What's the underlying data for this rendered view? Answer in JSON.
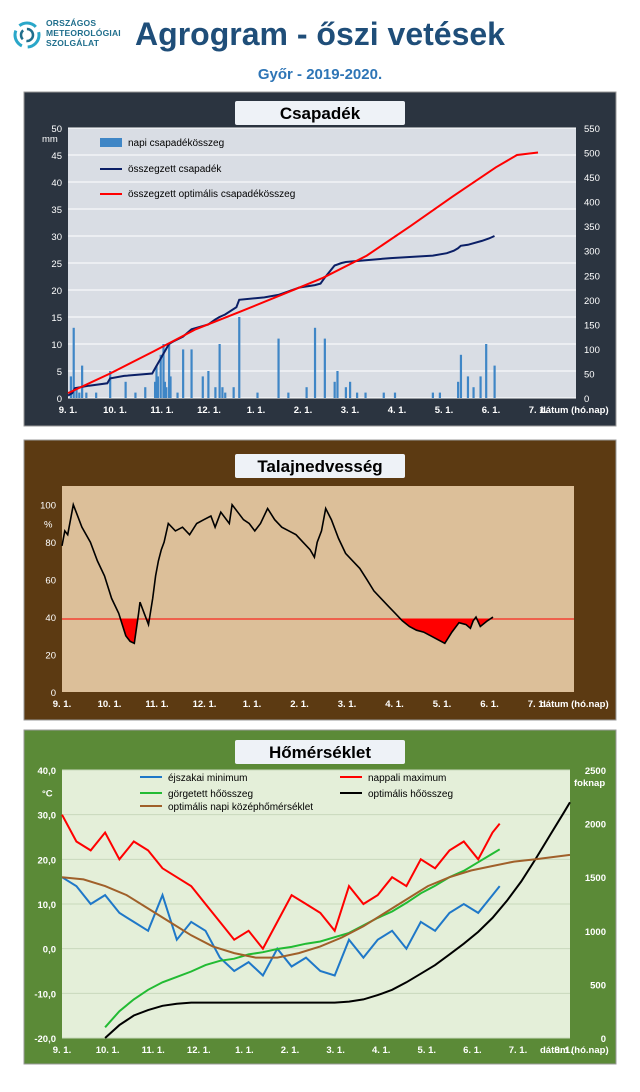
{
  "header": {
    "logo_lines": [
      "ORSZÁGOS",
      "METEOROLÓGIAI",
      "SZOLGÁLAT"
    ],
    "title": "Agrogram - őszi vetések",
    "subtitle": "Győr - 2019-2020."
  },
  "colors": {
    "panel1_bg": "#2b3440",
    "panel1_plot": "#d9dde4",
    "panel2_bg": "#5c3a12",
    "panel2_plot": "#dcbf99",
    "panel3_bg": "#5b8a37",
    "panel3_plot": "#e4efd9",
    "title_box": "#eef2f7",
    "bar_blue": "#3f86c6",
    "navy": "#0b1f66",
    "red": "#ff0000",
    "green": "#22bb33",
    "brown": "#a0602a",
    "blue_min": "#1f78c8"
  },
  "chart_data": [
    {
      "type": "bar",
      "title": "Csapadék",
      "xlabel": "dátum (hó.nap)",
      "ylabel": "mm",
      "ylim": [
        0,
        50
      ],
      "y2lim": [
        0,
        550
      ],
      "x_ticks": [
        "9. 1.",
        "10. 1.",
        "11. 1.",
        "12. 1.",
        "1. 1.",
        "2. 1.",
        "3. 1.",
        "4. 1.",
        "5. 1.",
        "6. 1.",
        "7. 1."
      ],
      "y_ticks": [
        "0",
        "5",
        "10",
        "15",
        "20",
        "25",
        "30",
        "35",
        "40",
        "45",
        "50"
      ],
      "y2_ticks": [
        "0",
        "50",
        "100",
        "150",
        "200",
        "250",
        "300",
        "350",
        "400",
        "450",
        "500",
        "550"
      ],
      "grid": true,
      "legend": [
        "napi csapadékösszeg",
        "összegzett csapadék",
        "összegzett optimális  csapadékösszeg"
      ],
      "series": [
        {
          "name": "napi csapadékösszeg",
          "axis": "left",
          "kind": "bar",
          "x": [
            2,
            4,
            6,
            8,
            10,
            13,
            20,
            30,
            41,
            48,
            55,
            62,
            63,
            64,
            66,
            68,
            69,
            70,
            72,
            73,
            78,
            82,
            88,
            96,
            100,
            105,
            108,
            110,
            112,
            118,
            122,
            135,
            150,
            157,
            170,
            176,
            183,
            190,
            192,
            198,
            201,
            206,
            212,
            225,
            233,
            260,
            265,
            278,
            280,
            285,
            289,
            294,
            298,
            304
          ],
          "values": [
            4,
            13,
            2,
            1,
            6,
            1,
            1,
            5,
            3,
            1,
            2,
            3,
            6,
            4,
            8,
            10,
            3,
            2,
            10,
            4,
            1,
            9,
            9,
            4,
            5,
            2,
            10,
            2,
            1,
            2,
            15,
            1,
            11,
            1,
            2,
            13,
            11,
            3,
            5,
            2,
            3,
            1,
            1,
            1,
            1,
            1,
            1,
            3,
            8,
            4,
            2,
            4,
            10,
            6
          ]
        },
        {
          "name": "összegzett csapadék",
          "axis": "right",
          "kind": "line",
          "x": [
            0,
            3,
            5,
            15,
            28,
            30,
            40,
            60,
            62,
            64,
            66,
            68,
            70,
            72,
            75,
            82,
            88,
            100,
            105,
            108,
            112,
            120,
            122,
            140,
            150,
            165,
            176,
            180,
            183,
            190,
            195,
            198,
            210,
            230,
            260,
            270,
            275,
            278,
            280,
            285,
            295,
            300,
            304
          ],
          "values": [
            5,
            10,
            20,
            25,
            30,
            40,
            45,
            50,
            60,
            70,
            80,
            90,
            100,
            110,
            115,
            125,
            140,
            150,
            160,
            165,
            170,
            185,
            200,
            205,
            210,
            225,
            230,
            233,
            245,
            270,
            275,
            277,
            280,
            285,
            290,
            295,
            300,
            305,
            310,
            312,
            320,
            325,
            330
          ]
        },
        {
          "name": "összegzett optimális  csapadékösszeg",
          "axis": "right",
          "kind": "line",
          "x": [
            0,
            30,
            61,
            91,
            122,
            152,
            182,
            213,
            244,
            274,
            305,
            320,
            335
          ],
          "values": [
            10,
            50,
            95,
            140,
            175,
            210,
            245,
            290,
            350,
            410,
            470,
            495,
            500
          ]
        }
      ]
    },
    {
      "type": "line",
      "title": "Talajnedvesség",
      "xlabel": "dátum (hó.nap)",
      "ylabel": "%",
      "ylim": [
        0,
        110
      ],
      "threshold": 39,
      "x_ticks": [
        "9. 1.",
        "10. 1.",
        "11. 1.",
        "12. 1.",
        "1. 1.",
        "2. 1.",
        "3. 1.",
        "4. 1.",
        "5. 1.",
        "6. 1.",
        "7. 1."
      ],
      "y_ticks": [
        "0",
        "20",
        "40",
        "60",
        "80",
        "100"
      ],
      "series": [
        {
          "name": "",
          "x": [
            0,
            2,
            4,
            6,
            8,
            10,
            14,
            20,
            25,
            30,
            35,
            40,
            45,
            48,
            51,
            54,
            55,
            58,
            61,
            64,
            66,
            68,
            70,
            72,
            75,
            80,
            85,
            90,
            95,
            100,
            105,
            108,
            112,
            118,
            120,
            124,
            128,
            132,
            136,
            140,
            145,
            150,
            155,
            160,
            165,
            170,
            175,
            178,
            180,
            183,
            186,
            190,
            195,
            200,
            205,
            210,
            215,
            220,
            225,
            230,
            235,
            240,
            245,
            250,
            255,
            260,
            265,
            270,
            275,
            280,
            285,
            288,
            290,
            292,
            295,
            300,
            304
          ],
          "values": [
            78,
            86,
            84,
            92,
            100,
            96,
            88,
            80,
            70,
            62,
            50,
            42,
            30,
            27,
            26,
            42,
            48,
            42,
            36,
            50,
            62,
            70,
            76,
            80,
            90,
            86,
            88,
            84,
            90,
            92,
            94,
            88,
            96,
            90,
            100,
            96,
            92,
            90,
            86,
            90,
            98,
            92,
            88,
            86,
            84,
            80,
            76,
            72,
            80,
            86,
            98,
            92,
            82,
            74,
            70,
            66,
            60,
            54,
            50,
            46,
            42,
            38,
            35,
            33,
            32,
            30,
            28,
            26,
            32,
            37,
            36,
            34,
            38,
            40,
            35,
            38,
            40
          ]
        }
      ]
    },
    {
      "type": "line",
      "title": "Hőmérséklet",
      "xlabel": "dátum (hó.nap)",
      "ylabel": "°C",
      "y2label": "foknap",
      "ylim": [
        -20,
        40
      ],
      "y2lim": [
        0,
        2500
      ],
      "x_ticks": [
        "9. 1.",
        "10. 1.",
        "11. 1.",
        "12. 1.",
        "1. 1.",
        "2. 1.",
        "3. 1.",
        "4. 1.",
        "5. 1.",
        "6. 1.",
        "7. 1.",
        "8. 1."
      ],
      "y_ticks": [
        "-20,0",
        "-10,0",
        "0,0",
        "10,0",
        "20,0",
        "30,0",
        "40,0"
      ],
      "y2_ticks": [
        "0",
        "500",
        "1000",
        "1500",
        "2000",
        "2500"
      ],
      "legend": [
        "éjszakai minimum",
        "nappali maximum",
        "görgetett hőösszeg",
        "optimális hőösszeg",
        "optimális napi középhőmérséklet"
      ],
      "series": [
        {
          "name": "éjszakai minimum",
          "axis": "left",
          "x": [
            0,
            10,
            20,
            30,
            40,
            50,
            60,
            70,
            80,
            90,
            100,
            110,
            120,
            130,
            140,
            150,
            160,
            170,
            180,
            190,
            200,
            210,
            220,
            230,
            240,
            250,
            260,
            270,
            280,
            290,
            300,
            305
          ],
          "values": [
            16,
            14,
            10,
            12,
            8,
            6,
            4,
            12,
            2,
            6,
            4,
            -2,
            -5,
            -3,
            -6,
            0,
            -4,
            -2,
            -5,
            -6,
            2,
            -2,
            2,
            4,
            0,
            6,
            4,
            8,
            10,
            8,
            12,
            14
          ]
        },
        {
          "name": "nappali maximum",
          "axis": "left",
          "x": [
            0,
            10,
            20,
            30,
            40,
            50,
            60,
            70,
            80,
            90,
            100,
            110,
            120,
            130,
            140,
            150,
            160,
            170,
            180,
            190,
            200,
            210,
            220,
            230,
            240,
            250,
            260,
            270,
            280,
            290,
            300,
            305
          ],
          "values": [
            30,
            24,
            22,
            26,
            20,
            24,
            22,
            18,
            16,
            14,
            10,
            6,
            2,
            4,
            0,
            6,
            12,
            10,
            8,
            4,
            14,
            10,
            12,
            16,
            14,
            20,
            18,
            22,
            24,
            20,
            26,
            28
          ]
        },
        {
          "name": "görgetett hőösszeg",
          "axis": "right",
          "x": [
            30,
            40,
            50,
            60,
            70,
            80,
            90,
            100,
            110,
            120,
            130,
            140,
            150,
            160,
            170,
            180,
            190,
            200,
            210,
            220,
            230,
            240,
            250,
            260,
            270,
            280,
            290,
            300,
            305
          ],
          "values": [
            100,
            250,
            360,
            450,
            520,
            570,
            620,
            680,
            720,
            740,
            780,
            800,
            830,
            850,
            880,
            900,
            940,
            980,
            1050,
            1120,
            1180,
            1260,
            1350,
            1420,
            1500,
            1560,
            1640,
            1720,
            1760
          ]
        },
        {
          "name": "optimális hőösszeg",
          "axis": "right",
          "x": [
            30,
            40,
            50,
            60,
            70,
            80,
            90,
            100,
            110,
            120,
            130,
            140,
            150,
            160,
            170,
            180,
            190,
            200,
            210,
            220,
            230,
            240,
            250,
            260,
            270,
            280,
            290,
            300,
            310,
            320,
            330,
            340,
            350,
            354
          ],
          "values": [
            0,
            120,
            210,
            260,
            300,
            320,
            330,
            330,
            330,
            330,
            330,
            330,
            330,
            330,
            330,
            330,
            330,
            340,
            360,
            400,
            450,
            520,
            600,
            680,
            780,
            880,
            990,
            1120,
            1280,
            1460,
            1670,
            1890,
            2110,
            2200
          ]
        },
        {
          "name": "optimális napi középhőmérséklet",
          "axis": "left",
          "x": [
            0,
            15,
            30,
            45,
            60,
            75,
            90,
            105,
            120,
            135,
            150,
            165,
            180,
            195,
            210,
            225,
            240,
            255,
            270,
            285,
            300,
            315,
            330,
            354
          ],
          "values": [
            16,
            15.5,
            14,
            12,
            9,
            6,
            3,
            0.5,
            -1,
            -2,
            -2,
            -1,
            0.5,
            2.5,
            5,
            8,
            11,
            14,
            16,
            17.5,
            18.5,
            19.5,
            20,
            21
          ]
        }
      ]
    }
  ]
}
